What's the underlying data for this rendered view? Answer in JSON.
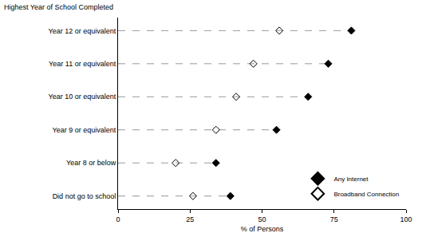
{
  "chart_data": {
    "type": "dot",
    "ylabel": "Highest Year of School Completed",
    "xlabel": "% of Persons",
    "categories": [
      "Year 12 or equivalent",
      "Year 11 or equivalent",
      "Year 10 or equivalent",
      "Year 9 or equivalent",
      "Year 8 or below",
      "Did not go to school"
    ],
    "series": [
      {
        "name": "Any Internet",
        "color": "#000000",
        "marker": "diamond",
        "values": [
          81,
          73,
          66,
          55,
          34,
          39
        ]
      },
      {
        "name": "Broadband Connection",
        "color": "#000000",
        "marker": "diamond-open",
        "values": [
          56,
          47,
          41,
          34,
          20,
          26
        ]
      }
    ],
    "xlim": [
      0,
      100
    ],
    "xticks": [
      0,
      25,
      50,
      75,
      100
    ],
    "grid": false,
    "legend": "bottom right"
  }
}
